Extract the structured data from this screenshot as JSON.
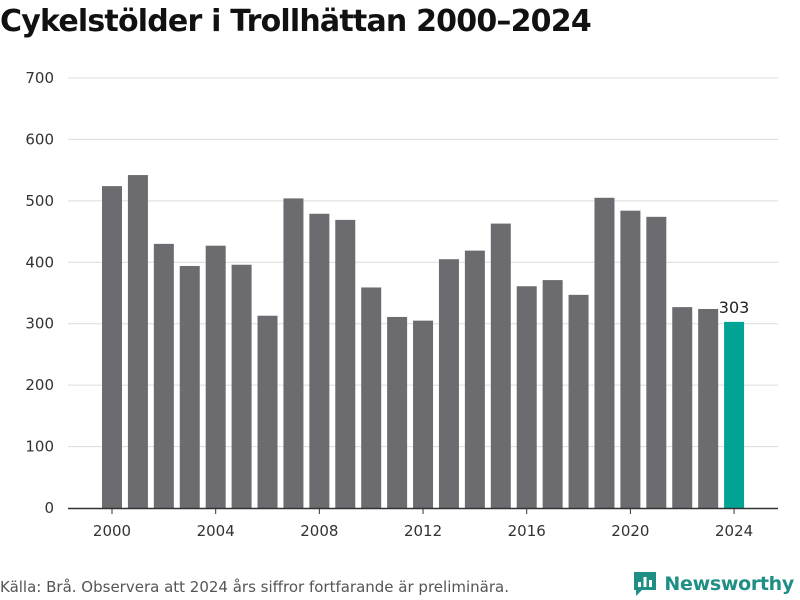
{
  "title": "Cykelstölder i Trollhättan 2000–2024",
  "source": "Källa: Brå. Observera att 2024 års siffror fortfarande är preliminära.",
  "brand": {
    "name": "Newsworthy",
    "icon": "newsworthy-logo-icon",
    "color": "#1f8f86"
  },
  "colors": {
    "bar": "#6c6b70",
    "highlight": "#00a394",
    "grid": "#dcdcdc",
    "axis": "#333333"
  },
  "chart_data": {
    "type": "bar",
    "title": "Cykelstölder i Trollhättan 2000–2024",
    "xlabel": "",
    "ylabel": "",
    "x": [
      2000,
      2001,
      2002,
      2003,
      2004,
      2005,
      2006,
      2007,
      2008,
      2009,
      2010,
      2011,
      2012,
      2013,
      2014,
      2015,
      2016,
      2017,
      2018,
      2019,
      2020,
      2021,
      2022,
      2023,
      2024
    ],
    "values": [
      524,
      542,
      430,
      394,
      427,
      396,
      313,
      504,
      479,
      469,
      359,
      311,
      305,
      405,
      419,
      463,
      361,
      371,
      347,
      505,
      484,
      474,
      327,
      324,
      303
    ],
    "highlight_index": 24,
    "highlight_label": "303",
    "ylim": [
      0,
      700
    ],
    "yticks": [
      0,
      100,
      200,
      300,
      400,
      500,
      600,
      700
    ],
    "xticks": [
      2000,
      2004,
      2008,
      2012,
      2016,
      2020,
      2024
    ],
    "grid": true,
    "legend": "none"
  }
}
